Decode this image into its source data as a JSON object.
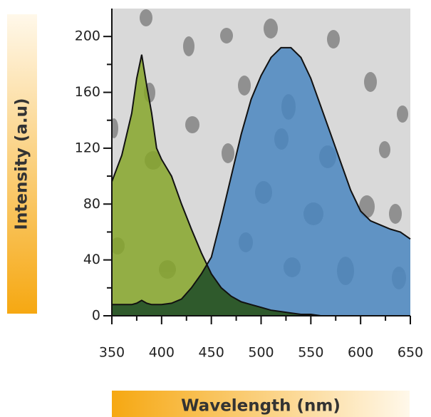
{
  "chart_data": {
    "type": "area",
    "xlabel": "Wavelength (nm)",
    "ylabel": "Intensity (a.u)",
    "x": [
      350,
      360,
      370,
      375,
      380,
      385,
      390,
      395,
      400,
      410,
      420,
      430,
      440,
      450,
      460,
      470,
      480,
      490,
      500,
      510,
      520,
      530,
      540,
      550,
      560,
      570,
      580,
      590,
      600,
      610,
      620,
      630,
      640,
      650
    ],
    "series": [
      {
        "color": "#86a62a",
        "values": [
          96,
          115,
          145,
          170,
          187,
          165,
          145,
          120,
          112,
          100,
          80,
          62,
          45,
          30,
          20,
          14,
          10,
          8,
          6,
          4,
          3,
          2,
          1,
          1,
          0,
          0,
          0,
          0,
          0,
          0,
          0,
          0,
          0,
          0
        ]
      },
      {
        "color": "#4a86c0",
        "values": [
          8,
          8,
          8,
          9,
          11,
          9,
          8,
          8,
          8,
          9,
          12,
          20,
          30,
          42,
          70,
          100,
          130,
          155,
          172,
          185,
          192,
          192,
          185,
          170,
          150,
          130,
          110,
          90,
          75,
          68,
          65,
          62,
          60,
          55
        ]
      }
    ],
    "overlap_color": "#2f5a2c",
    "xlim": [
      350,
      650
    ],
    "ylim": [
      0,
      220
    ],
    "xticks": [
      350,
      400,
      450,
      500,
      550,
      600,
      650
    ],
    "xminor": [
      375,
      425,
      475,
      525,
      575,
      625
    ],
    "yticks": [
      0,
      40,
      80,
      120,
      160,
      200
    ],
    "yminor": [
      20,
      60,
      100,
      140,
      180
    ]
  }
}
